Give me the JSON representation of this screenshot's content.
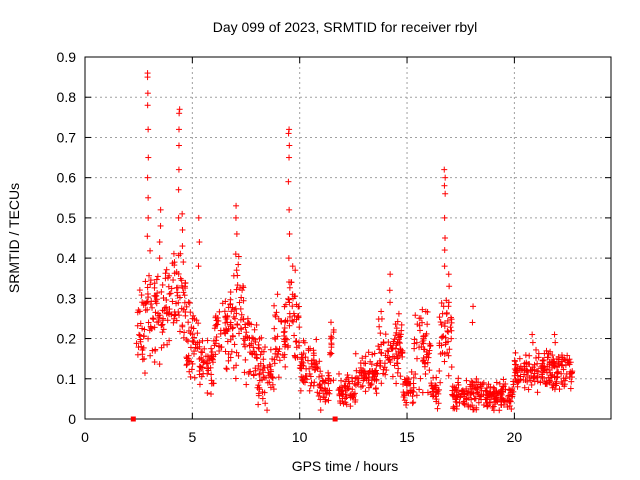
{
  "chart_data": {
    "type": "scatter",
    "title": "Day 099 of 2023, SRMTID for receiver rbyl",
    "xlabel": "GPS time / hours",
    "ylabel": "SRMTID / TECUs",
    "xlim": [
      0,
      24.5
    ],
    "ylim": [
      0,
      0.9
    ],
    "xticks": [
      0,
      5,
      10,
      15,
      20
    ],
    "yticks": [
      0,
      0.1,
      0.2,
      0.3,
      0.4,
      0.5,
      0.6,
      0.7,
      0.8,
      0.9
    ],
    "grid": true,
    "marker": "plus",
    "color": "#ff0000",
    "baseline_markers": [
      {
        "x": 2.25,
        "y": 0.0
      },
      {
        "x": 11.65,
        "y": 0.0
      }
    ],
    "series": [
      {
        "name": "SRMTID",
        "segments": [
          {
            "start": 2.4,
            "end": 2.75,
            "base": 0.22,
            "spread": 0.12
          },
          {
            "start": 2.75,
            "end": 3.1,
            "base": 0.3,
            "spread": 0.15
          },
          {
            "start": 3.1,
            "end": 4.0,
            "base": 0.27,
            "spread": 0.1
          },
          {
            "start": 4.0,
            "end": 4.7,
            "base": 0.3,
            "spread": 0.12
          },
          {
            "start": 4.7,
            "end": 5.3,
            "base": 0.2,
            "spread": 0.1
          },
          {
            "start": 5.3,
            "end": 6.0,
            "base": 0.14,
            "spread": 0.07
          },
          {
            "start": 6.0,
            "end": 6.9,
            "base": 0.22,
            "spread": 0.08
          },
          {
            "start": 6.9,
            "end": 7.4,
            "base": 0.25,
            "spread": 0.12
          },
          {
            "start": 7.4,
            "end": 8.0,
            "base": 0.19,
            "spread": 0.08
          },
          {
            "start": 8.0,
            "end": 8.8,
            "base": 0.12,
            "spread": 0.07
          },
          {
            "start": 8.8,
            "end": 9.5,
            "base": 0.2,
            "spread": 0.09
          },
          {
            "start": 9.5,
            "end": 10.0,
            "base": 0.25,
            "spread": 0.12
          },
          {
            "start": 10.0,
            "end": 10.8,
            "base": 0.12,
            "spread": 0.06
          },
          {
            "start": 10.8,
            "end": 11.4,
            "base": 0.08,
            "spread": 0.05
          },
          {
            "start": 11.4,
            "end": 11.6,
            "base": 0.18,
            "spread": 0.08
          },
          {
            "start": 11.8,
            "end": 12.6,
            "base": 0.07,
            "spread": 0.04
          },
          {
            "start": 12.6,
            "end": 13.6,
            "base": 0.11,
            "spread": 0.05
          },
          {
            "start": 13.6,
            "end": 14.8,
            "base": 0.17,
            "spread": 0.08
          },
          {
            "start": 14.8,
            "end": 15.3,
            "base": 0.08,
            "spread": 0.04
          },
          {
            "start": 15.3,
            "end": 16.1,
            "base": 0.18,
            "spread": 0.1
          },
          {
            "start": 16.1,
            "end": 16.5,
            "base": 0.07,
            "spread": 0.04
          },
          {
            "start": 16.5,
            "end": 17.1,
            "base": 0.2,
            "spread": 0.1
          },
          {
            "start": 17.1,
            "end": 18.5,
            "base": 0.06,
            "spread": 0.04
          },
          {
            "start": 18.5,
            "end": 20.0,
            "base": 0.06,
            "spread": 0.035
          },
          {
            "start": 20.0,
            "end": 20.6,
            "base": 0.12,
            "spread": 0.05
          },
          {
            "start": 20.6,
            "end": 22.7,
            "base": 0.12,
            "spread": 0.05
          }
        ],
        "spikes": [
          {
            "x": 2.92,
            "values": [
              0.86,
              0.85,
              0.81,
              0.78,
              0.72,
              0.65,
              0.6,
              0.55,
              0.5
            ]
          },
          {
            "x": 3.5,
            "values": [
              0.52,
              0.48,
              0.44,
              0.4
            ]
          },
          {
            "x": 4.38,
            "values": [
              0.77,
              0.76,
              0.72,
              0.68,
              0.62,
              0.57,
              0.5
            ]
          },
          {
            "x": 4.55,
            "values": [
              0.51,
              0.47,
              0.43
            ]
          },
          {
            "x": 5.3,
            "values": [
              0.5,
              0.44,
              0.38
            ]
          },
          {
            "x": 7.05,
            "values": [
              0.53,
              0.5,
              0.46,
              0.41,
              0.37
            ]
          },
          {
            "x": 9.5,
            "values": [
              0.72,
              0.71,
              0.68,
              0.65,
              0.59,
              0.52,
              0.46,
              0.4
            ]
          },
          {
            "x": 9.65,
            "values": [
              0.38,
              0.34,
              0.31
            ]
          },
          {
            "x": 14.2,
            "values": [
              0.36,
              0.32,
              0.29
            ]
          },
          {
            "x": 16.75,
            "values": [
              0.62,
              0.6,
              0.58,
              0.56,
              0.5,
              0.45,
              0.42,
              0.38
            ]
          },
          {
            "x": 16.95,
            "values": [
              0.36,
              0.33,
              0.29
            ]
          },
          {
            "x": 18.05,
            "values": [
              0.28,
              0.24
            ]
          },
          {
            "x": 20.85,
            "values": [
              0.21,
              0.19
            ]
          },
          {
            "x": 21.9,
            "values": [
              0.21,
              0.19
            ]
          }
        ]
      }
    ]
  }
}
